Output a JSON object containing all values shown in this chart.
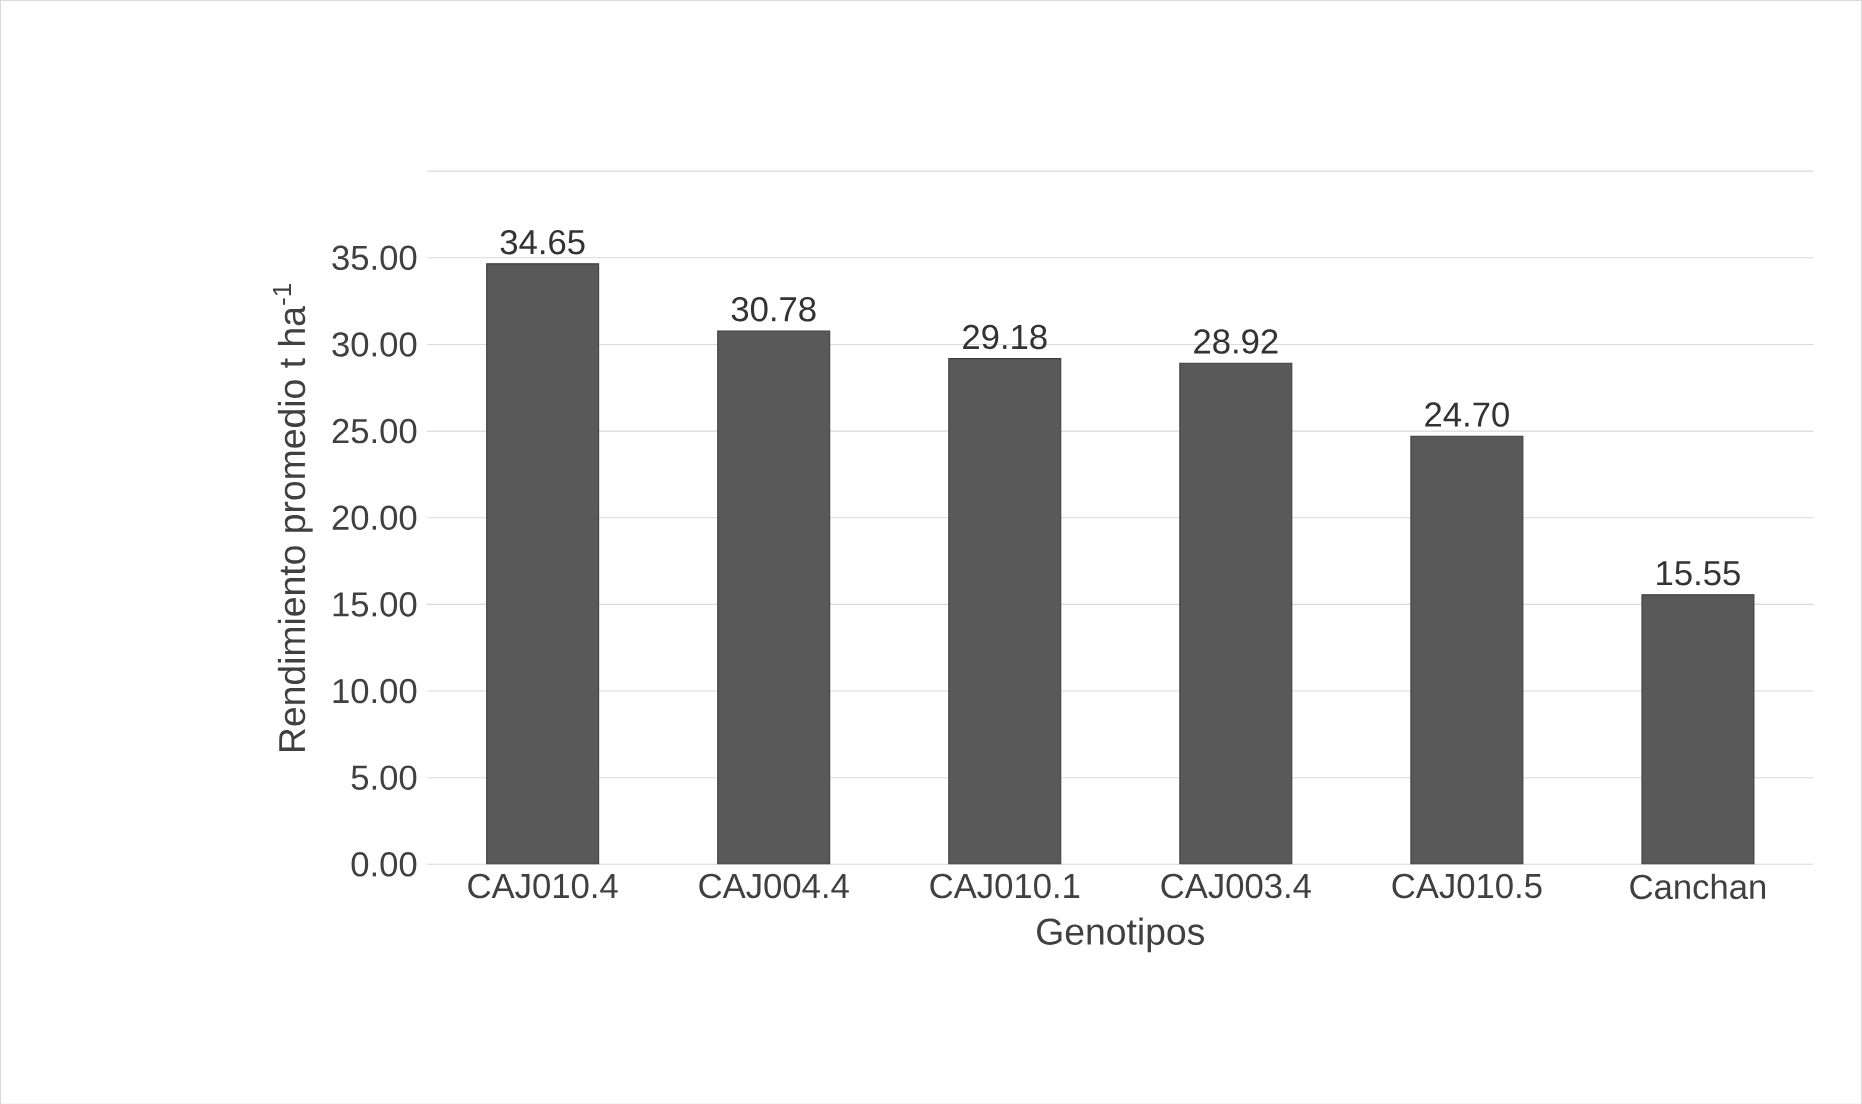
{
  "chart_data": {
    "type": "bar",
    "xlabel": "Genotipos",
    "ylabel": "Rendimiento promedio t ha$^{-1}$",
    "categories": [
      "CAJ010.4",
      "CAJ004.4",
      "CAJ010.1",
      "CAJ003.4",
      "CAJ010.5",
      "Canchan"
    ],
    "values": [
      34.65,
      30.78,
      29.18,
      28.92,
      24.7,
      15.55
    ],
    "value_labels": [
      "34.65",
      "30.78",
      "29.18",
      "28.92",
      "24.70",
      "15.55"
    ],
    "color": "#595959",
    "ylim": [
      0,
      40
    ],
    "yticks": [
      {
        "value": 0,
        "label": "0.00"
      },
      {
        "value": 5,
        "label": "5.00"
      },
      {
        "value": 10,
        "label": "10.00"
      },
      {
        "value": 15,
        "label": "15.00"
      },
      {
        "value": 20,
        "label": "20.00"
      },
      {
        "value": 25,
        "label": "25.00"
      },
      {
        "value": 30,
        "label": "30.00"
      },
      {
        "value": 35,
        "label": "35.00"
      },
      {
        "value": 40,
        "label": null
      }
    ],
    "grid": "y"
  }
}
